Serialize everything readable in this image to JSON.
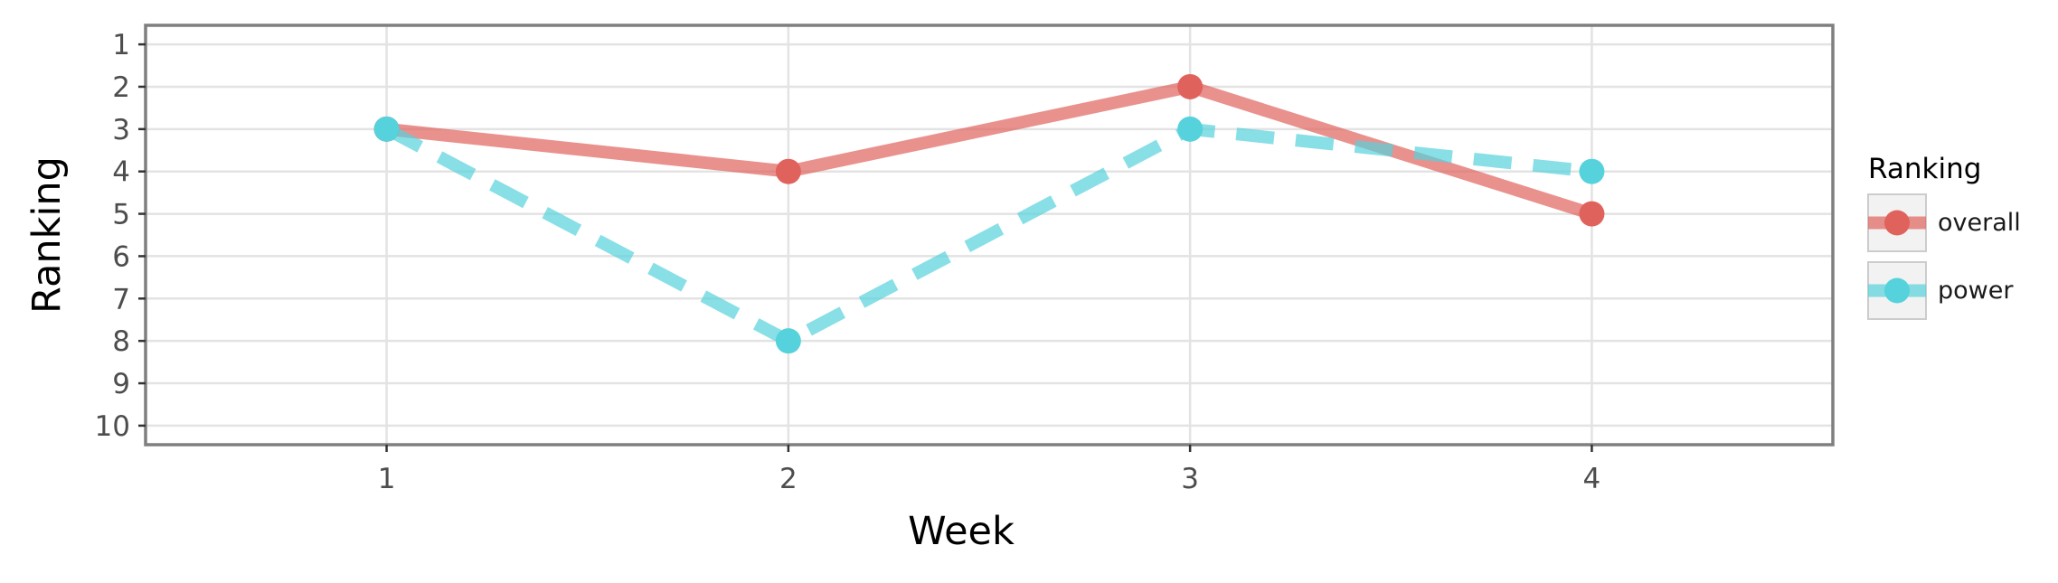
{
  "chart_data": {
    "type": "line",
    "x": [
      1,
      2,
      3,
      4
    ],
    "series": [
      {
        "name": "overall",
        "values": [
          3,
          4,
          2,
          5
        ],
        "color": "#E0625C",
        "line_style": "solid"
      },
      {
        "name": "power",
        "values": [
          3,
          8,
          3,
          4
        ],
        "color": "#55D2DB",
        "line_style": "dashed"
      }
    ],
    "xlabel": "Week",
    "ylabel": "Ranking",
    "x_ticks": [
      "1",
      "2",
      "3",
      "4"
    ],
    "y_ticks": [
      "1",
      "2",
      "3",
      "4",
      "5",
      "6",
      "7",
      "8",
      "9",
      "10"
    ],
    "xlim": [
      0.4,
      4.6
    ],
    "ylim": [
      0.55,
      10.45
    ],
    "y_reversed": true,
    "grid": true,
    "legend": {
      "title": "Ranking",
      "position": "right"
    }
  }
}
